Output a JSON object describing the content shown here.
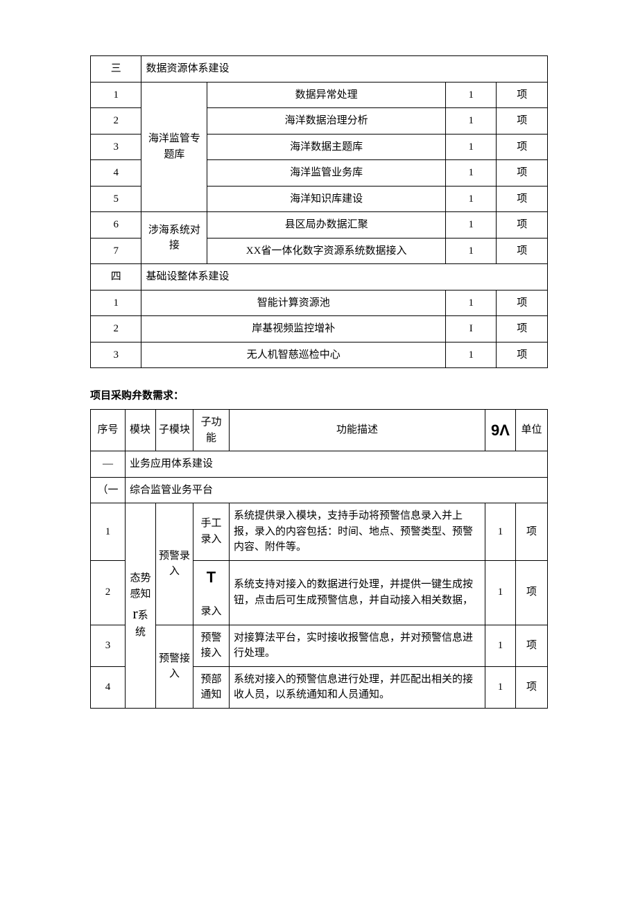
{
  "table1": {
    "section3_label": "三",
    "section3_title": "数据资源体系建设",
    "group_a": "海洋监管专题库",
    "rows_a": [
      {
        "n": "1",
        "name": "数据异常处理",
        "qty": "1",
        "unit": "项"
      },
      {
        "n": "2",
        "name": "海洋数据治理分析",
        "qty": "1",
        "unit": "项"
      },
      {
        "n": "3",
        "name": "海洋数据主题库",
        "qty": "1",
        "unit": "项"
      },
      {
        "n": "4",
        "name": "海洋监管业务库",
        "qty": "1",
        "unit": "项"
      },
      {
        "n": "5",
        "name": "海洋知识库建设",
        "qty": "1",
        "unit": "项"
      }
    ],
    "group_b": "涉海系统对接",
    "rows_b": [
      {
        "n": "6",
        "name": "县区局办数据汇聚",
        "qty": "1",
        "unit": "项"
      },
      {
        "n": "7",
        "name": "XX省一体化数字资源系统数据接入",
        "qty": "1",
        "unit": "项"
      }
    ],
    "section4_label": "四",
    "section4_title": "基础设整体系建设",
    "rows_c": [
      {
        "n": "1",
        "name": "智能计算资源池",
        "qty": "1",
        "unit": "项"
      },
      {
        "n": "2",
        "name": "岸基视频监控增补",
        "qty": "I",
        "unit": "项"
      },
      {
        "n": "3",
        "name": "无人机智慈巡检中心",
        "qty": "1",
        "unit": "项"
      }
    ]
  },
  "subtitle": "项目采购弁数需求：",
  "table2": {
    "headers": {
      "c1": "序号",
      "c2": "模块",
      "c3": "子模块",
      "c4": "子功能",
      "c5": "功能描述",
      "c6": "9Λ",
      "c7": "单位"
    },
    "sec1_label": "—",
    "sec1_title": "业务应用体系建设",
    "sec1a_label": "（一",
    "sec1a_title": "综合监管业务平台",
    "module": "态势感知r系统",
    "group_a": "预警录入",
    "group_b": "预警接入",
    "rows": [
      {
        "n": "1",
        "sub": "手工录入",
        "desc": "系统提供录入模块，支持手动将预警信息录入并上报，录入的内容包括：时间、地点、预警类型、预警内容、附件等。",
        "qty": "1",
        "unit": "项"
      },
      {
        "n": "2",
        "sub": "T    录入",
        "desc": "系统支持对接入的数据进行处理，并提供一键生成按钮，点击后可生成预警信息，并自动接入相关数据，",
        "qty": "1",
        "unit": "项"
      },
      {
        "n": "3",
        "sub": "预警接入",
        "desc": "对接算法平台，实时接收报警信息，并对预警信息进行处理。",
        "qty": "1",
        "unit": "项"
      },
      {
        "n": "4",
        "sub": "预部通知",
        "desc": "系统对接入的预警信息进行处理，并匹配出相关的接收人员，以系统通知和人员通知。",
        "qty": "1",
        "unit": "项"
      }
    ]
  }
}
